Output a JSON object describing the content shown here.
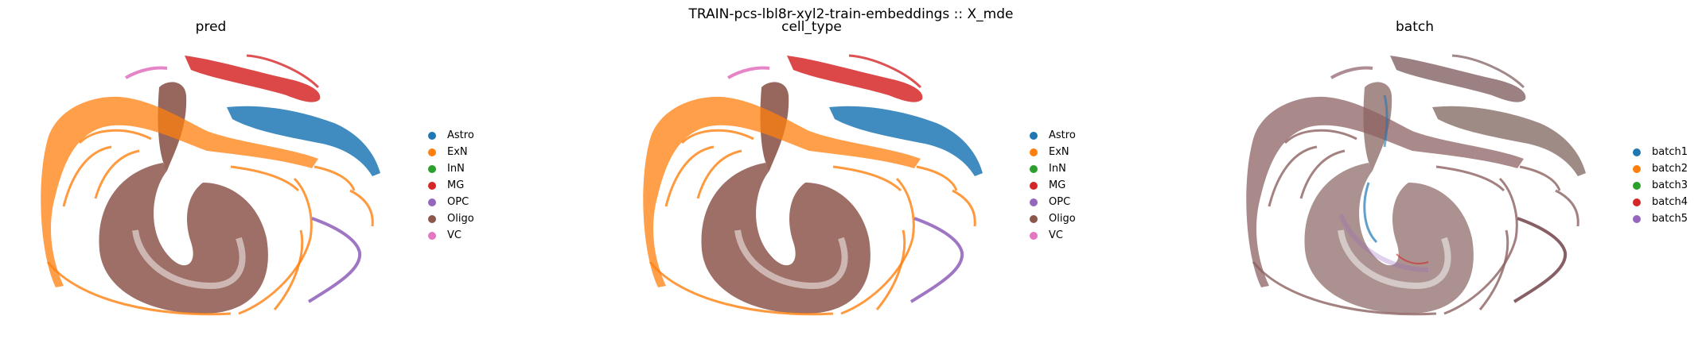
{
  "suptitle": "TRAIN-pcs-lbl8r-xyl2-train-embeddings :: X_mde",
  "chart_data": [
    {
      "type": "scatter",
      "title": "pred",
      "legend": [
        "Astro",
        "ExN",
        "InN",
        "MG",
        "OPC",
        "Oligo",
        "VC"
      ],
      "colors": {
        "Astro": "#1f77b4",
        "ExN": "#ff7f0e",
        "InN": "#2ca02c",
        "MG": "#d62728",
        "OPC": "#9467bd",
        "Oligo": "#8c564b",
        "VC": "#e377c2"
      },
      "legend_placement": "right",
      "grid": false,
      "axes_visible": false
    },
    {
      "type": "scatter",
      "title": "cell_type",
      "legend": [
        "Astro",
        "ExN",
        "InN",
        "MG",
        "OPC",
        "Oligo",
        "VC"
      ],
      "colors": {
        "Astro": "#1f77b4",
        "ExN": "#ff7f0e",
        "InN": "#2ca02c",
        "MG": "#d62728",
        "OPC": "#9467bd",
        "Oligo": "#8c564b",
        "VC": "#e377c2"
      },
      "legend_placement": "right",
      "grid": false,
      "axes_visible": false
    },
    {
      "type": "scatter",
      "title": "batch",
      "legend": [
        "batch1",
        "batch2",
        "batch3",
        "batch4",
        "batch5"
      ],
      "colors": {
        "batch1": "#1f77b4",
        "batch2": "#ff7f0e",
        "batch3": "#2ca02c",
        "batch4": "#d62728",
        "batch5": "#9467bd"
      },
      "legend_placement": "right",
      "grid": false,
      "axes_visible": false
    }
  ]
}
